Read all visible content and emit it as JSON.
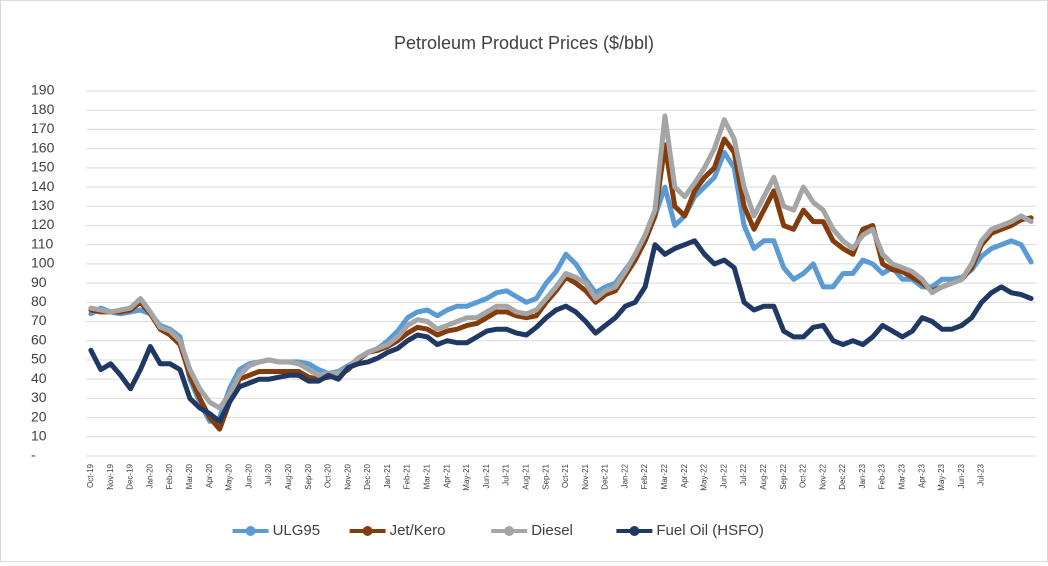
{
  "chart_data": {
    "type": "line",
    "title": "Petroleum Product Prices ($/bbl)",
    "categories": [
      "Oct-19",
      null,
      "Nov-19",
      null,
      "Dec-19",
      null,
      "Jan-20",
      null,
      "Feb-20",
      null,
      "Mar-20",
      null,
      "Apr-20",
      null,
      "May-20",
      null,
      "Jun-20",
      null,
      "Jul-20",
      null,
      "Aug-20",
      null,
      "Sep-20",
      null,
      "Oct-20",
      null,
      "Nov-20",
      null,
      "Dec-20",
      null,
      "Jan-21",
      null,
      "Feb-21",
      null,
      "Mar-21",
      null,
      "Apr-21",
      null,
      "May-21",
      null,
      "Jun-21",
      null,
      "Jul-21",
      null,
      "Aug-21",
      null,
      "Sep-21",
      null,
      "Oct-21",
      null,
      "Nov-21",
      null,
      "Dec-21",
      null,
      "Jan-22",
      null,
      "Feb-22",
      null,
      "Mar-22",
      null,
      "Apr-22",
      null,
      "May-22",
      null,
      "Jun-22",
      null,
      "Jul-22",
      null,
      "Aug-22",
      null,
      "Sep-22",
      null,
      "Oct-22",
      null,
      "Nov-22",
      null,
      "Dec-22",
      null,
      "Jan-23",
      null,
      "Feb-23",
      null,
      "Mar-23",
      null,
      "Apr-23",
      null,
      "May-23",
      null,
      "Jun-23",
      null,
      "Jul-23",
      null,
      null,
      null,
      null,
      null
    ],
    "series": [
      {
        "name": "ULG95",
        "color": "#5b9bd5",
        "values": [
          74,
          77,
          75,
          74,
          75,
          76,
          74,
          68,
          66,
          62,
          40,
          28,
          18,
          20,
          35,
          45,
          48,
          49,
          50,
          49,
          49,
          49,
          48,
          45,
          43,
          44,
          47,
          50,
          54,
          56,
          60,
          65,
          72,
          75,
          76,
          73,
          76,
          78,
          78,
          80,
          82,
          85,
          86,
          83,
          80,
          82,
          90,
          96,
          105,
          100,
          92,
          85,
          88,
          90,
          97,
          104,
          112,
          125,
          140,
          120,
          125,
          135,
          140,
          145,
          158,
          150,
          120,
          108,
          112,
          112,
          98,
          92,
          95,
          100,
          88,
          88,
          95,
          95,
          102,
          100,
          95,
          98,
          92,
          92,
          88,
          88,
          92,
          92,
          93,
          97,
          104,
          108,
          110,
          112,
          110,
          101
        ]
      },
      {
        "name": "Jet/Kero",
        "color": "#843c0c",
        "values": [
          76,
          75,
          75,
          75,
          76,
          80,
          74,
          66,
          63,
          58,
          42,
          30,
          20,
          14,
          28,
          40,
          42,
          44,
          44,
          44,
          44,
          44,
          41,
          40,
          41,
          42,
          45,
          50,
          54,
          55,
          57,
          60,
          64,
          67,
          66,
          63,
          65,
          66,
          68,
          69,
          72,
          75,
          75,
          73,
          72,
          73,
          80,
          86,
          93,
          90,
          86,
          80,
          84,
          86,
          94,
          102,
          112,
          125,
          162,
          130,
          125,
          138,
          145,
          150,
          165,
          158,
          130,
          118,
          128,
          138,
          120,
          118,
          128,
          122,
          122,
          112,
          108,
          105,
          118,
          120,
          100,
          97,
          96,
          93,
          90,
          86,
          88,
          90,
          92,
          98,
          110,
          116,
          118,
          120,
          123,
          124
        ]
      },
      {
        "name": "Diesel",
        "color": "#a5a5a5",
        "values": [
          77,
          76,
          75,
          76,
          77,
          82,
          75,
          67,
          65,
          60,
          45,
          35,
          28,
          25,
          32,
          42,
          47,
          49,
          50,
          49,
          49,
          48,
          45,
          42,
          43,
          43,
          46,
          51,
          54,
          56,
          58,
          62,
          68,
          71,
          70,
          66,
          68,
          70,
          72,
          72,
          75,
          78,
          78,
          75,
          74,
          76,
          82,
          88,
          95,
          93,
          90,
          82,
          86,
          88,
          96,
          105,
          115,
          128,
          177,
          140,
          135,
          142,
          150,
          160,
          175,
          165,
          140,
          125,
          135,
          145,
          130,
          128,
          140,
          132,
          128,
          118,
          112,
          108,
          115,
          118,
          105,
          100,
          98,
          96,
          92,
          85,
          88,
          90,
          92,
          100,
          112,
          118,
          120,
          122,
          125,
          122
        ]
      },
      {
        "name": "Fuel Oil (HSFO)",
        "color": "#1f3864",
        "values": [
          55,
          45,
          48,
          42,
          35,
          45,
          57,
          48,
          48,
          45,
          30,
          25,
          22,
          18,
          28,
          36,
          38,
          40,
          40,
          41,
          42,
          42,
          39,
          39,
          42,
          40,
          46,
          48,
          49,
          51,
          54,
          56,
          60,
          63,
          62,
          58,
          60,
          59,
          59,
          62,
          65,
          66,
          66,
          64,
          63,
          67,
          72,
          76,
          78,
          75,
          70,
          64,
          68,
          72,
          78,
          80,
          88,
          110,
          105,
          108,
          110,
          112,
          105,
          100,
          102,
          98,
          80,
          76,
          78,
          78,
          65,
          62,
          62,
          67,
          68,
          60,
          58,
          60,
          58,
          62,
          68,
          65,
          62,
          65,
          72,
          70,
          66,
          66,
          68,
          72,
          80,
          85,
          88,
          85,
          84,
          82
        ]
      }
    ],
    "ylim": [
      0,
      190
    ],
    "yticks": [
      {
        "value": 0,
        "label": "-"
      },
      10,
      20,
      30,
      40,
      50,
      60,
      70,
      80,
      90,
      100,
      110,
      120,
      130,
      140,
      150,
      160,
      170,
      180,
      190
    ],
    "grid": true,
    "legend": "bottom"
  }
}
